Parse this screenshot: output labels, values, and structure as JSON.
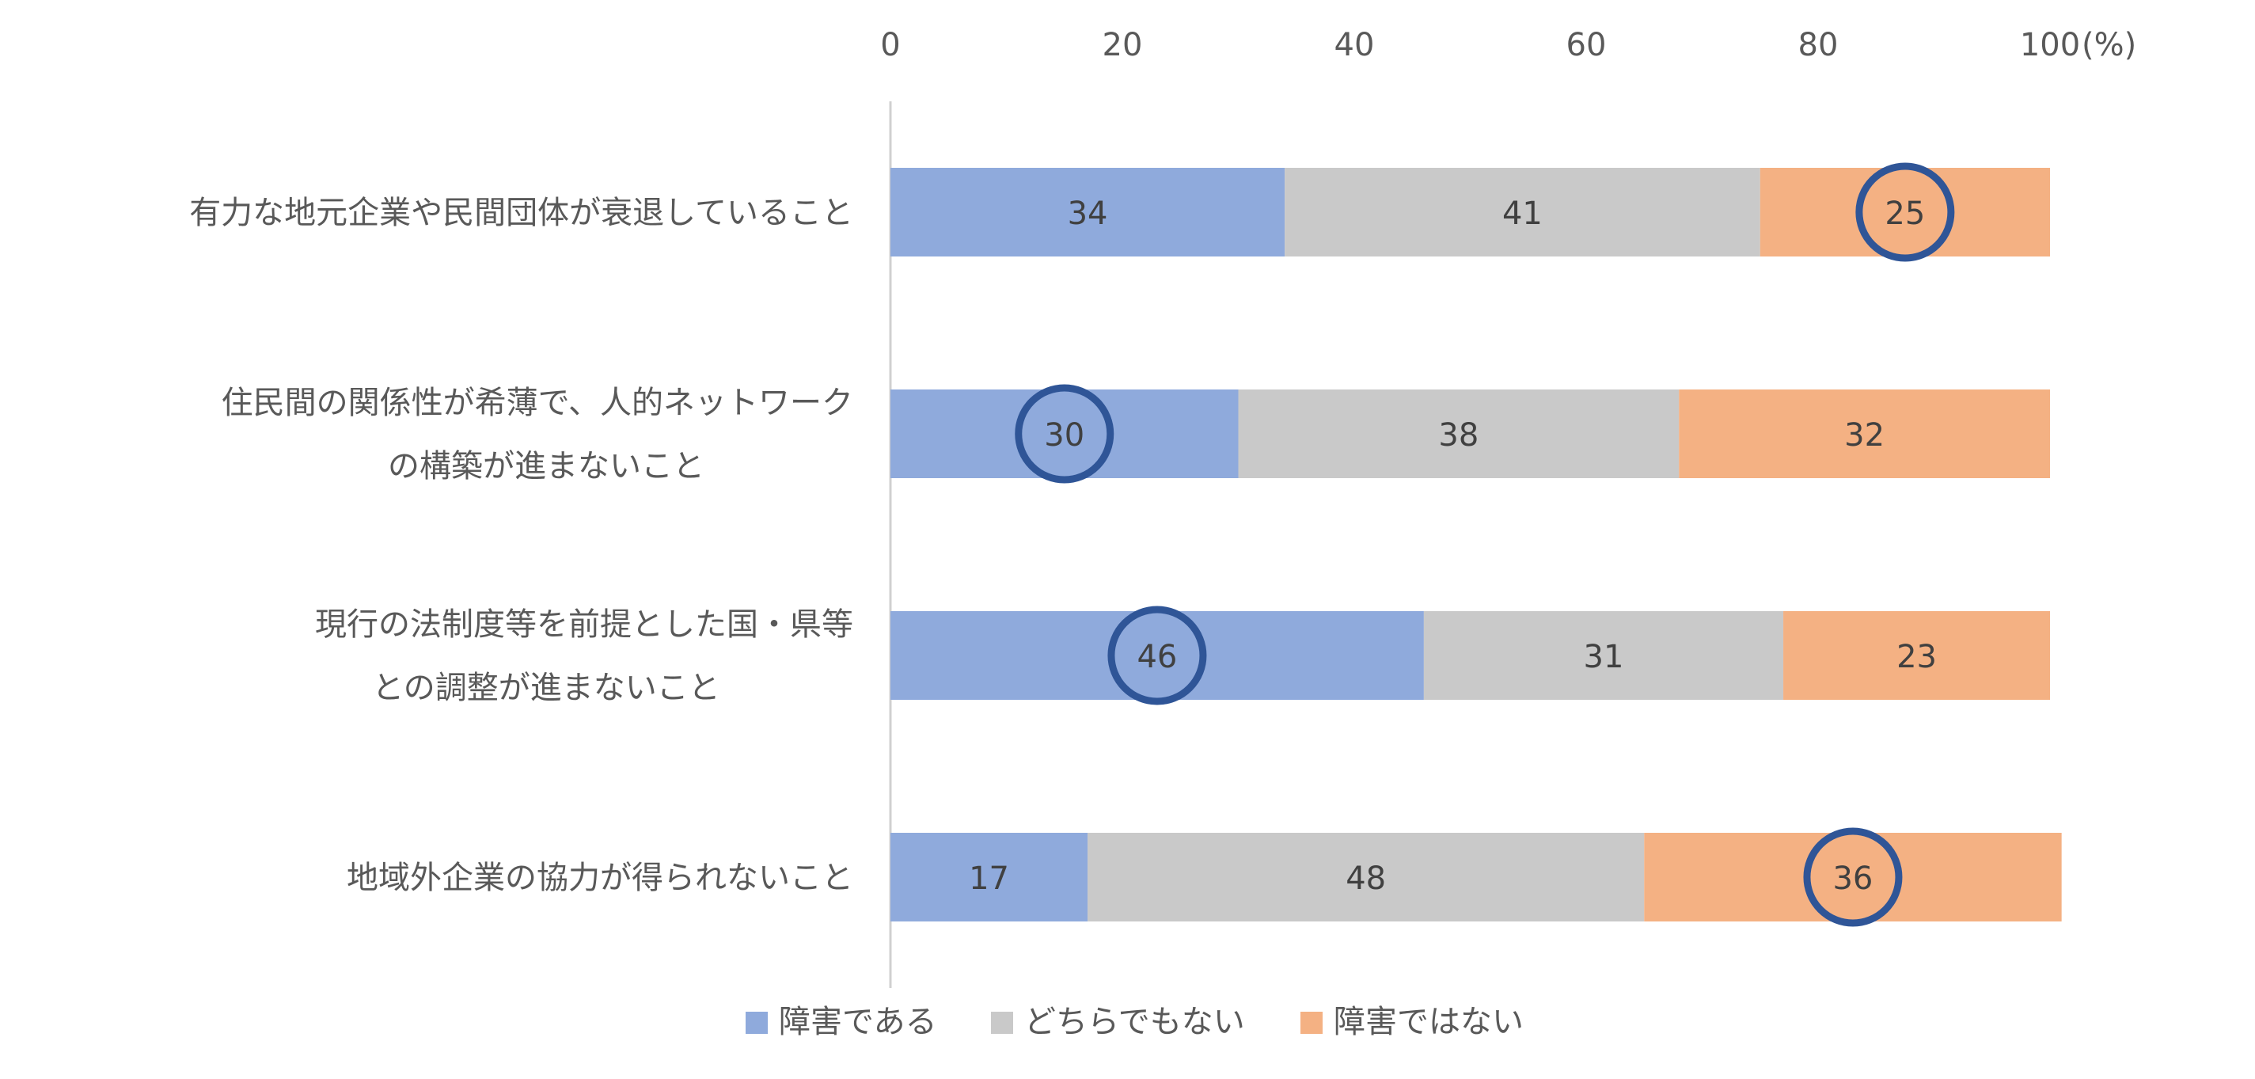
{
  "chart_data": {
    "type": "bar",
    "orientation": "horizontal",
    "stacked": true,
    "unit_label": "(%)",
    "xlim": [
      0,
      100
    ],
    "x_ticks": [
      "0",
      "20",
      "40",
      "60",
      "80",
      "100"
    ],
    "categories": [
      [
        "有力な地元企業や民間団体が衰退していること"
      ],
      [
        "住民間の関係性が希薄で、人的ネットワーク",
        "の構築が進まないこと"
      ],
      [
        "現行の法制度等を前提とした国・県等",
        "との調整が進まないこと"
      ],
      [
        "地域外企業の協力が得られないこと"
      ]
    ],
    "series": [
      {
        "name": "障害である",
        "color": "#8faadc",
        "values": [
          34,
          30,
          46,
          17
        ]
      },
      {
        "name": "どちらでもない",
        "color": "#c9c9c9",
        "values": [
          41,
          38,
          31,
          48
        ]
      },
      {
        "name": "障害ではない",
        "color": "#f4b183",
        "values": [
          25,
          32,
          23,
          36
        ]
      }
    ],
    "highlight": {
      "color": "#2f5597",
      "points": [
        {
          "category": 0,
          "series": 2
        },
        {
          "category": 1,
          "series": 0
        },
        {
          "category": 2,
          "series": 0
        },
        {
          "category": 3,
          "series": 2
        }
      ]
    },
    "legend_position": "bottom",
    "grid": false
  }
}
